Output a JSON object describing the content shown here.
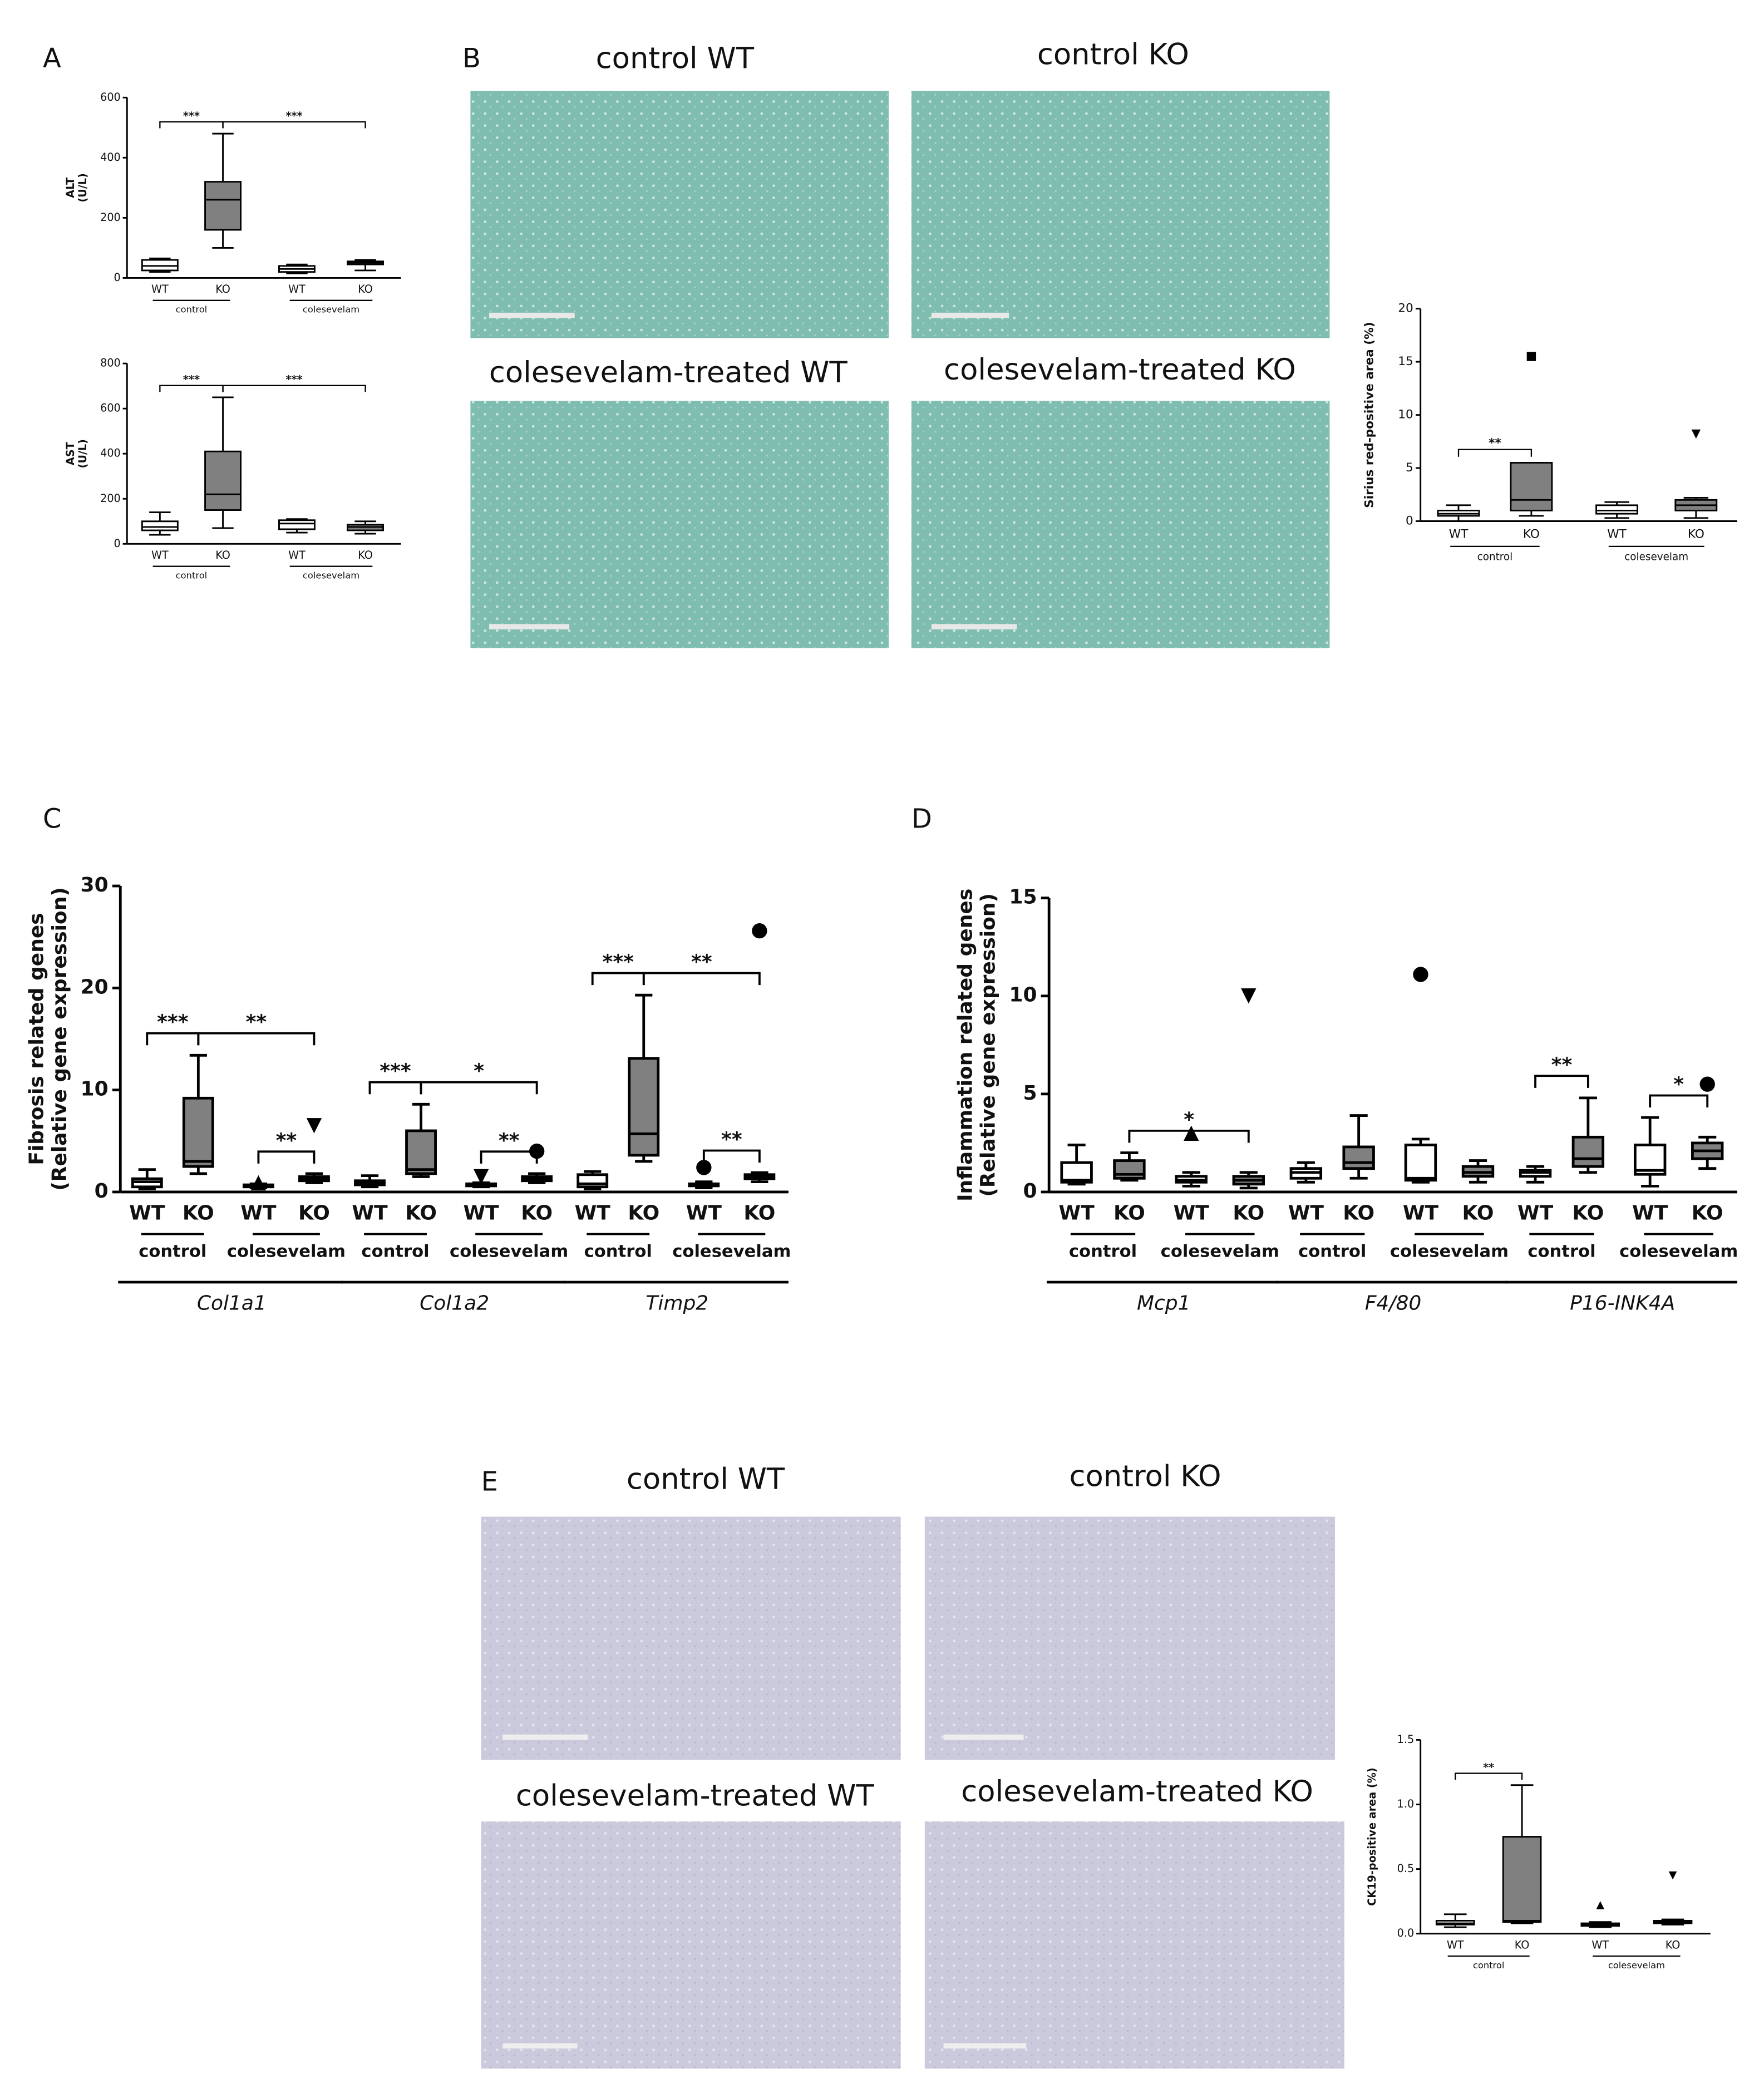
{
  "panel_labels": [
    "A",
    "B",
    "C",
    "D",
    "E"
  ],
  "panel_b": {
    "image_captions": [
      "control WT",
      "control KO",
      "colesevelam-treated WT",
      "colesevelam-treated KO"
    ]
  },
  "panel_e": {
    "image_captions": [
      "control WT",
      "control KO",
      "colesevelam-treated WT",
      "colesevelam-treated KO"
    ]
  },
  "chart_data": [
    {
      "type": "box",
      "y_label": [
        "ALT",
        "(U/L)"
      ],
      "ylim": [
        0,
        600
      ],
      "yticks": [
        0,
        200,
        400,
        600
      ],
      "clusters": [
        {
          "categories": [
            "WT",
            "KO",
            "WT",
            "KO"
          ],
          "groups": [
            "control",
            "colesevelam"
          ],
          "boxes": [
            {
              "min": 20,
              "q1": 25,
              "median": 40,
              "q3": 60,
              "max": 65,
              "fill": "#ffffff"
            },
            {
              "min": 100,
              "q1": 160,
              "median": 260,
              "q3": 320,
              "max": 480,
              "fill": "#808080"
            },
            {
              "min": 15,
              "q1": 20,
              "median": 30,
              "q3": 40,
              "max": 45,
              "fill": "#ffffff"
            },
            {
              "min": 25,
              "q1": 45,
              "median": 50,
              "q3": 55,
              "max": 60,
              "fill": "#808080"
            }
          ]
        }
      ],
      "brackets": [
        {
          "label": "***",
          "from": 0,
          "to": 1
        },
        {
          "label": "***",
          "from": 1,
          "to": 3
        }
      ]
    },
    {
      "type": "box",
      "y_label": [
        "AST",
        "(U/L)"
      ],
      "ylim": [
        0,
        800
      ],
      "yticks": [
        0,
        200,
        400,
        600,
        800
      ],
      "clusters": [
        {
          "categories": [
            "WT",
            "KO",
            "WT",
            "KO"
          ],
          "groups": [
            "control",
            "colesevelam"
          ],
          "boxes": [
            {
              "min": 40,
              "q1": 60,
              "median": 75,
              "q3": 100,
              "max": 140,
              "fill": "#ffffff"
            },
            {
              "min": 70,
              "q1": 150,
              "median": 220,
              "q3": 410,
              "max": 650,
              "fill": "#808080"
            },
            {
              "min": 50,
              "q1": 65,
              "median": 90,
              "q3": 105,
              "max": 110,
              "fill": "#ffffff"
            },
            {
              "min": 45,
              "q1": 60,
              "median": 75,
              "q3": 85,
              "max": 100,
              "fill": "#808080"
            }
          ]
        }
      ],
      "brackets": [
        {
          "label": "***",
          "from": 0,
          "to": 1
        },
        {
          "label": "***",
          "from": 1,
          "to": 3
        }
      ]
    },
    {
      "type": "box",
      "y_label": [
        "Sirius red-positive area (%)"
      ],
      "ylim": [
        0,
        20
      ],
      "yticks": [
        0,
        5,
        10,
        15,
        20
      ],
      "clusters": [
        {
          "categories": [
            "WT",
            "KO",
            "WT",
            "KO"
          ],
          "groups": [
            "control",
            "colesevelam"
          ],
          "boxes": [
            {
              "min": 0,
              "q1": 0.5,
              "median": 0.7,
              "q3": 1,
              "max": 1.5,
              "fill": "#ffffff"
            },
            {
              "min": 0.5,
              "q1": 1,
              "median": 2,
              "q3": 5.5,
              "max": 5.5,
              "fill": "#808080",
              "outliers": [
                15.5
              ],
              "marker": "square"
            },
            {
              "min": 0.3,
              "q1": 0.7,
              "median": 1,
              "q3": 1.5,
              "max": 1.8,
              "fill": "#ffffff"
            },
            {
              "min": 0.3,
              "q1": 1,
              "median": 1.5,
              "q3": 2,
              "max": 2.2,
              "fill": "#808080",
              "outliers": [
                8.2
              ],
              "marker": "triangle-down"
            }
          ]
        }
      ],
      "brackets": [
        {
          "label": "**",
          "from": 0,
          "to": 1
        }
      ]
    },
    {
      "type": "box",
      "y_label": [
        "Fibrosis related genes",
        "(Relative gene expression)"
      ],
      "ylim": [
        0,
        30
      ],
      "yticks": [
        0,
        10,
        20,
        30
      ],
      "clusters": [
        {
          "label": "Col1a1",
          "categories": [
            "WT",
            "KO",
            "WT",
            "KO"
          ],
          "groups": [
            "control",
            "colesevelam"
          ],
          "boxes": [
            {
              "min": 0.3,
              "q1": 0.5,
              "median": 1,
              "q3": 1.3,
              "max": 2.2,
              "fill": "#ffffff"
            },
            {
              "min": 1.8,
              "q1": 2.5,
              "median": 3,
              "q3": 9.2,
              "max": 13.4,
              "fill": "#808080"
            },
            {
              "min": 0.4,
              "q1": 0.5,
              "median": 0.6,
              "q3": 0.7,
              "max": 0.8,
              "fill": "#ffffff",
              "outliers": [
                0.9
              ],
              "marker": "triangle-up"
            },
            {
              "min": 0.9,
              "q1": 1.1,
              "median": 1.3,
              "q3": 1.5,
              "max": 1.8,
              "fill": "#808080",
              "outliers": [
                6.5
              ],
              "marker": "triangle-down"
            }
          ]
        },
        {
          "label": "Col1a2",
          "categories": [
            "WT",
            "KO",
            "WT",
            "KO"
          ],
          "groups": [
            "control",
            "colesevelam"
          ],
          "boxes": [
            {
              "min": 0.5,
              "q1": 0.7,
              "median": 0.9,
              "q3": 1.1,
              "max": 1.6,
              "fill": "#ffffff"
            },
            {
              "min": 1.5,
              "q1": 1.8,
              "median": 2.2,
              "q3": 6,
              "max": 8.6,
              "fill": "#808080"
            },
            {
              "min": 0.5,
              "q1": 0.6,
              "median": 0.7,
              "q3": 0.8,
              "max": 0.9,
              "fill": "#ffffff",
              "outliers": [
                1.5
              ],
              "marker": "triangle-down"
            },
            {
              "min": 0.9,
              "q1": 1.1,
              "median": 1.3,
              "q3": 1.5,
              "max": 1.8,
              "fill": "#808080",
              "outliers": [
                4
              ],
              "marker": "circle"
            }
          ]
        },
        {
          "label": "Timp2",
          "categories": [
            "WT",
            "KO",
            "WT",
            "KO"
          ],
          "groups": [
            "control",
            "colesevelam"
          ],
          "boxes": [
            {
              "min": 0.3,
              "q1": 0.5,
              "median": 0.8,
              "q3": 1.7,
              "max": 2,
              "fill": "#ffffff"
            },
            {
              "min": 3,
              "q1": 3.6,
              "median": 5.7,
              "q3": 13.1,
              "max": 19.3,
              "fill": "#808080"
            },
            {
              "min": 0.4,
              "q1": 0.6,
              "median": 0.7,
              "q3": 0.8,
              "max": 1,
              "fill": "#ffffff",
              "outliers": [
                2.4
              ],
              "marker": "circle"
            },
            {
              "min": 1,
              "q1": 1.3,
              "median": 1.5,
              "q3": 1.7,
              "max": 1.9,
              "fill": "#808080",
              "outliers": [
                25.6
              ],
              "marker": "circle"
            }
          ]
        }
      ],
      "brackets": [
        {
          "label": "***",
          "from": 0,
          "to": 1
        },
        {
          "label": "**",
          "from": 2,
          "to": 3
        },
        {
          "label": "**",
          "from": 1,
          "to": 3
        },
        {
          "label": "***",
          "from": 4,
          "to": 5
        },
        {
          "label": "**",
          "from": 6,
          "to": 7
        },
        {
          "label": "*",
          "from": 5,
          "to": 7
        },
        {
          "label": "***",
          "from": 8,
          "to": 9
        },
        {
          "label": "**",
          "from": 10,
          "to": 11
        },
        {
          "label": "**",
          "from": 9,
          "to": 11
        }
      ]
    },
    {
      "type": "box",
      "y_label": [
        "Inflammation related genes",
        "(Relative gene expression)"
      ],
      "ylim": [
        0,
        15
      ],
      "yticks": [
        0,
        5,
        10,
        15
      ],
      "clusters": [
        {
          "label": "Mcp1",
          "categories": [
            "WT",
            "KO",
            "WT",
            "KO"
          ],
          "groups": [
            "control",
            "colesevelam"
          ],
          "boxes": [
            {
              "min": 0.4,
              "q1": 0.5,
              "median": 0.6,
              "q3": 1.5,
              "max": 2.4,
              "fill": "#ffffff"
            },
            {
              "min": 0.6,
              "q1": 0.7,
              "median": 0.9,
              "q3": 1.6,
              "max": 2,
              "fill": "#808080"
            },
            {
              "min": 0.3,
              "q1": 0.5,
              "median": 0.6,
              "q3": 0.8,
              "max": 1,
              "fill": "#ffffff",
              "outliers": [
                3
              ],
              "marker": "triangle-up"
            },
            {
              "min": 0.2,
              "q1": 0.4,
              "median": 0.6,
              "q3": 0.8,
              "max": 1,
              "fill": "#808080",
              "outliers": [
                10
              ],
              "marker": "triangle-down"
            }
          ]
        },
        {
          "label": "F4/80",
          "categories": [
            "WT",
            "KO",
            "WT",
            "KO"
          ],
          "groups": [
            "control",
            "colesevelam"
          ],
          "boxes": [
            {
              "min": 0.5,
              "q1": 0.7,
              "median": 1,
              "q3": 1.2,
              "max": 1.5,
              "fill": "#ffffff"
            },
            {
              "min": 0.7,
              "q1": 1.2,
              "median": 1.5,
              "q3": 2.3,
              "max": 3.9,
              "fill": "#808080"
            },
            {
              "min": 0.5,
              "q1": 0.6,
              "median": 0.7,
              "q3": 2.4,
              "max": 2.7,
              "fill": "#ffffff",
              "outliers": [
                11.1
              ],
              "marker": "circle"
            },
            {
              "min": 0.5,
              "q1": 0.8,
              "median": 1,
              "q3": 1.3,
              "max": 1.6,
              "fill": "#808080"
            }
          ]
        },
        {
          "label": "P16-INK4A",
          "categories": [
            "WT",
            "KO",
            "WT",
            "KO"
          ],
          "groups": [
            "control",
            "colesevelam"
          ],
          "boxes": [
            {
              "min": 0.5,
              "q1": 0.8,
              "median": 1,
              "q3": 1.1,
              "max": 1.3,
              "fill": "#ffffff"
            },
            {
              "min": 1,
              "q1": 1.3,
              "median": 1.7,
              "q3": 2.8,
              "max": 4.8,
              "fill": "#808080"
            },
            {
              "min": 0.3,
              "q1": 0.9,
              "median": 1.1,
              "q3": 2.4,
              "max": 3.8,
              "fill": "#ffffff"
            },
            {
              "min": 1.2,
              "q1": 1.7,
              "median": 2.1,
              "q3": 2.5,
              "max": 2.8,
              "fill": "#808080",
              "outliers": [
                5.5
              ],
              "marker": "circle"
            }
          ]
        }
      ],
      "brackets": [
        {
          "label": "*",
          "from": 1,
          "to": 3
        },
        {
          "label": "**",
          "from": 8,
          "to": 9
        },
        {
          "label": "*",
          "from": 10,
          "to": 11
        }
      ]
    },
    {
      "type": "box",
      "y_label": [
        "CK19-positive area (%)"
      ],
      "ylim": [
        0,
        1.5
      ],
      "yticks": [
        {
          "value": 0,
          "label": "0.0"
        },
        0.5,
        {
          "value": 1,
          "label": "1.0"
        },
        1.5
      ],
      "clusters": [
        {
          "categories": [
            "WT",
            "KO",
            "WT",
            "KO"
          ],
          "groups": [
            "control",
            "colesevelam"
          ],
          "boxes": [
            {
              "min": 0.05,
              "q1": 0.07,
              "median": 0.08,
              "q3": 0.1,
              "max": 0.15,
              "fill": "#ffffff"
            },
            {
              "min": 0.08,
              "q1": 0.09,
              "median": 0.1,
              "q3": 0.75,
              "max": 1.15,
              "fill": "#808080"
            },
            {
              "min": 0.05,
              "q1": 0.06,
              "median": 0.07,
              "q3": 0.08,
              "max": 0.09,
              "fill": "#ffffff",
              "outliers": [
                0.22
              ],
              "marker": "triangle-up"
            },
            {
              "min": 0.07,
              "q1": 0.08,
              "median": 0.09,
              "q3": 0.1,
              "max": 0.11,
              "fill": "#808080",
              "outliers": [
                0.45
              ],
              "marker": "triangle-down"
            }
          ]
        }
      ],
      "brackets": [
        {
          "label": "**",
          "from": 0,
          "to": 1
        }
      ]
    }
  ]
}
